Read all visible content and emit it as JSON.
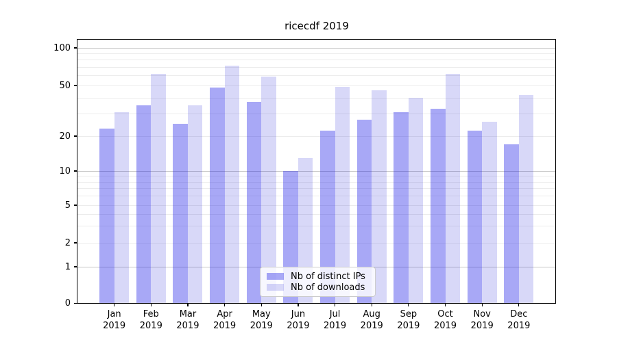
{
  "title": "ricecdf 2019",
  "chart_data": {
    "type": "bar",
    "title": "ricecdf 2019",
    "categories": [
      "Jan",
      "Feb",
      "Mar",
      "Apr",
      "May",
      "Jun",
      "Jul",
      "Aug",
      "Sep",
      "Oct",
      "Nov",
      "Dec"
    ],
    "year_label": "2019",
    "series": [
      {
        "name": "Nb of distinct IPs",
        "color": "rgba(20,20,230,0.37)",
        "approx_rendered_hex": "#a8a8f6",
        "values": [
          23,
          35,
          25,
          48,
          37,
          10,
          22,
          27,
          31,
          33,
          22,
          17
        ]
      },
      {
        "name": "Nb of downloads",
        "color": "rgba(10,10,210,0.16)",
        "approx_rendered_hex": "#d8d8f8",
        "values": [
          31,
          62,
          35,
          72,
          59,
          13,
          49,
          46,
          40,
          62,
          26,
          42
        ]
      }
    ],
    "xlabel": "",
    "ylabel": "",
    "ylim": [
      0,
      116
    ],
    "y_axis": {
      "scale": "symlog",
      "ticks": [
        {
          "value": 100,
          "label": "100"
        },
        {
          "value": 50,
          "label": "50"
        },
        {
          "value": 20,
          "label": "20"
        },
        {
          "value": 10,
          "label": "10"
        },
        {
          "value": 5,
          "label": "5"
        },
        {
          "value": 2,
          "label": "2"
        },
        {
          "value": 1,
          "label": "1"
        },
        {
          "value": 0,
          "label": "0"
        }
      ],
      "grid_major_values": [
        1,
        10,
        100
      ],
      "grid_minor_values": [
        2,
        3,
        4,
        5,
        6,
        7,
        8,
        9,
        20,
        30,
        40,
        50,
        60,
        70,
        80,
        90
      ]
    },
    "legend": {
      "position": "lower center",
      "entries": [
        "Nb of distinct IPs",
        "Nb of downloads"
      ]
    },
    "grid": "on"
  }
}
